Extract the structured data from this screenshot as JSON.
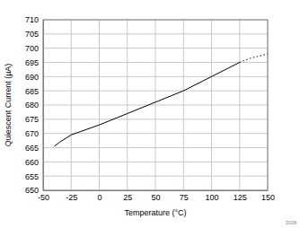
{
  "chart_data": {
    "type": "line",
    "x_label": "Temperature (°C)",
    "y_label": "Quiescent Current (µA)",
    "annotation": "D028",
    "series": [
      {
        "x": [
          -40,
          -35,
          -25,
          0,
          25,
          50,
          75,
          100,
          125
        ],
        "values": [
          665.5,
          667,
          669.5,
          673,
          677,
          681,
          685,
          690,
          695
        ],
        "color": "#000000",
        "line_style": "solid"
      },
      {
        "x": [
          125,
          135,
          150
        ],
        "values": [
          695,
          696.5,
          698
        ],
        "color": "#000000",
        "line_style": "dotted"
      }
    ],
    "xlim": [
      -50,
      150
    ],
    "xticks": [
      -50,
      -25,
      0,
      25,
      50,
      75,
      100,
      125,
      150
    ],
    "ylim": [
      650,
      710
    ],
    "yticks": [
      650,
      655,
      660,
      665,
      670,
      675,
      680,
      685,
      690,
      695,
      700,
      705,
      710
    ],
    "grid": true
  }
}
